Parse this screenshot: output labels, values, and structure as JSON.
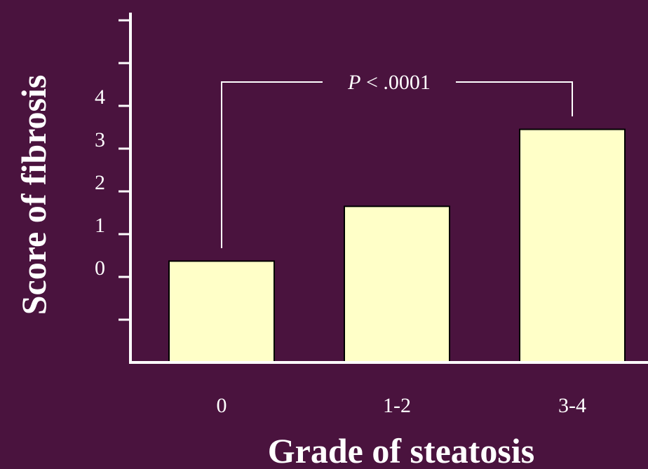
{
  "chart_data": {
    "type": "bar",
    "categories": [
      "0",
      "1-2",
      "3-4"
    ],
    "values": [
      0.37,
      1.65,
      3.45
    ],
    "xlabel": "Grade of steatosis",
    "ylabel": "Score of fibrosis",
    "ylim": [
      -2,
      6
    ],
    "yticks_labeled": [
      "0",
      "1",
      "2",
      "3",
      "4"
    ],
    "ytick_values_labeled": [
      0,
      1,
      2,
      3,
      4
    ],
    "ytick_marks": [
      -1,
      0,
      1,
      2,
      3,
      4,
      5,
      6
    ],
    "annotation": {
      "italic": "P",
      "text": " < .0001",
      "from_category": "0",
      "to_category": "3-4"
    },
    "grid": false,
    "legend": "none",
    "colors": {
      "background": "#4a133e",
      "bar_fill": "#ffffc8",
      "bar_stroke": "#000000",
      "axis": "#ffffff",
      "text": "#ffffff"
    }
  }
}
